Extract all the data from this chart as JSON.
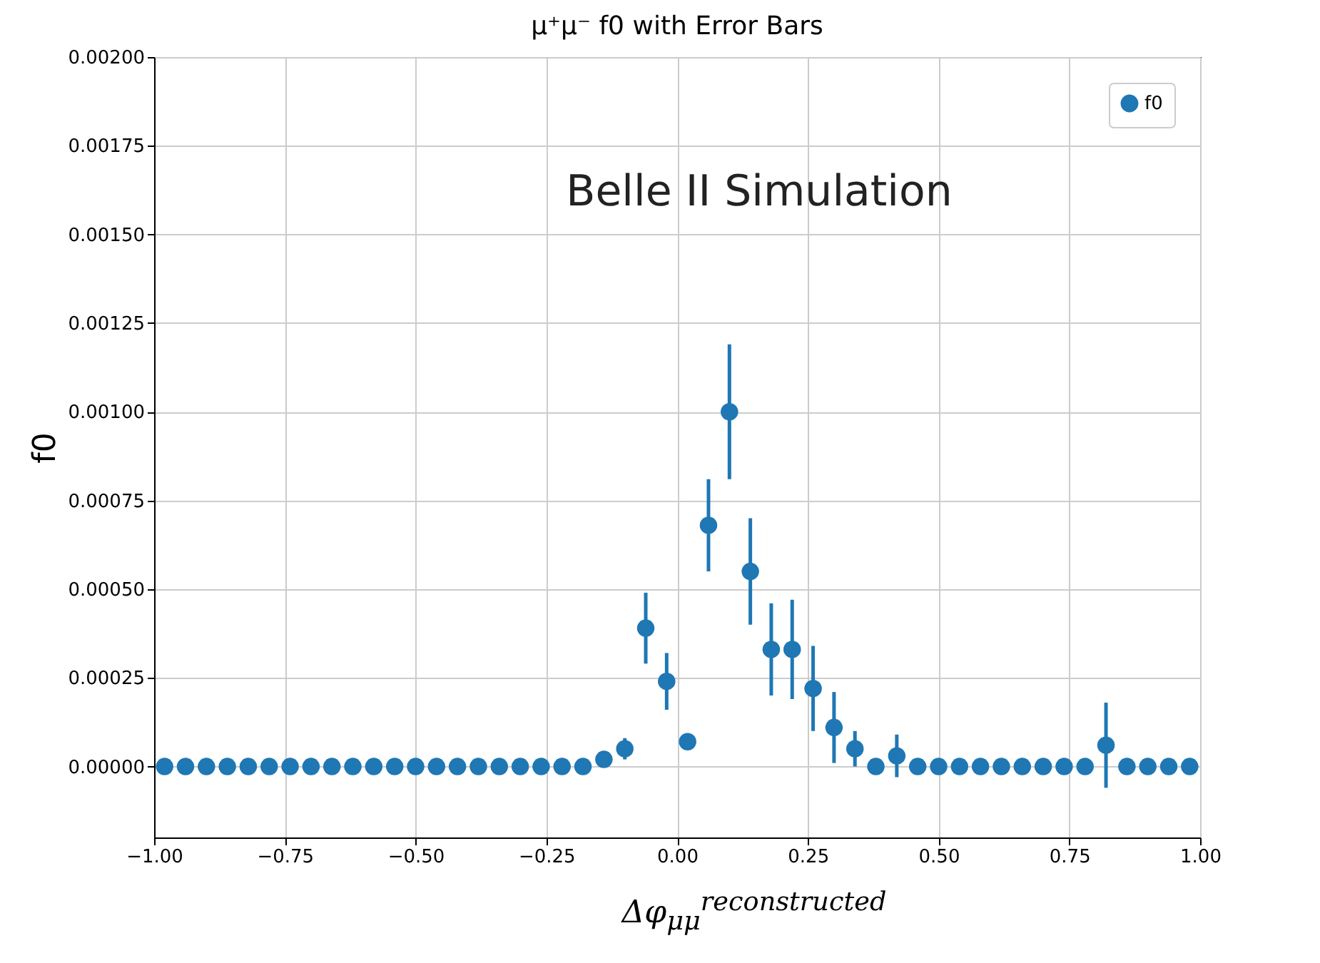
{
  "chart_data": {
    "type": "scatter",
    "title": "μ⁺μ⁻ f0 with Error Bars",
    "xlabel": "Δφ$_{μμ}$$^{reconstructed}$",
    "ylabel": "f0",
    "x": [
      -0.98,
      -0.94,
      -0.9,
      -0.86,
      -0.82,
      -0.78,
      -0.74,
      -0.7,
      -0.66,
      -0.62,
      -0.58,
      -0.54,
      -0.5,
      -0.46,
      -0.42,
      -0.38,
      -0.34,
      -0.3,
      -0.26,
      -0.22,
      -0.18,
      -0.14,
      -0.1,
      -0.06,
      -0.02,
      0.02,
      0.06,
      0.1,
      0.14,
      0.18,
      0.22,
      0.26,
      0.3,
      0.34,
      0.38,
      0.42,
      0.46,
      0.5,
      0.54,
      0.58,
      0.62,
      0.66,
      0.7,
      0.74,
      0.78,
      0.82,
      0.86,
      0.9,
      0.94,
      0.98
    ],
    "series": [
      {
        "name": "f0",
        "color": "#1f77b4",
        "values": [
          0,
          0,
          0,
          0,
          0,
          0,
          0,
          0,
          0,
          0,
          0,
          0,
          0,
          0,
          0,
          0,
          0,
          0,
          0,
          0,
          0,
          2e-05,
          5e-05,
          0.00039,
          0.00024,
          7e-05,
          0.00068,
          0.001,
          0.00055,
          0.00033,
          0.00033,
          0.00022,
          0.00011,
          5e-05,
          0,
          3e-05,
          0,
          0,
          0,
          0,
          0,
          0,
          0,
          0,
          0,
          6e-05,
          0,
          0,
          0,
          0
        ],
        "errors": [
          null,
          null,
          null,
          null,
          null,
          null,
          null,
          null,
          null,
          null,
          null,
          null,
          null,
          null,
          null,
          null,
          null,
          null,
          null,
          null,
          null,
          null,
          3e-05,
          0.0001,
          8e-05,
          2e-05,
          0.00013,
          0.00019,
          0.00015,
          0.00013,
          0.00014,
          0.00012,
          0.0001,
          5e-05,
          null,
          6e-05,
          null,
          null,
          null,
          null,
          null,
          null,
          null,
          null,
          null,
          0.00012,
          null,
          null,
          null,
          null
        ]
      }
    ],
    "xlim": [
      -1,
      1
    ],
    "xticks": [
      {
        "value": -1,
        "label": "−1.00"
      },
      {
        "value": -0.75,
        "label": "−0.75"
      },
      {
        "value": -0.5,
        "label": "−0.50"
      },
      {
        "value": -0.25,
        "label": "−0.25"
      },
      {
        "value": 0,
        "label": "0.00"
      },
      {
        "value": 0.25,
        "label": "0.25"
      },
      {
        "value": 0.5,
        "label": "0.50"
      },
      {
        "value": 0.75,
        "label": "0.75"
      },
      {
        "value": 1,
        "label": "1.00"
      }
    ],
    "ylim": [
      -0.0002,
      0.002
    ],
    "yticks": [
      {
        "value": 0,
        "label": "0.00000"
      },
      {
        "value": 0.00025,
        "label": "0.00025"
      },
      {
        "value": 0.0005,
        "label": "0.00050"
      },
      {
        "value": 0.00075,
        "label": "0.00075"
      },
      {
        "value": 0.001,
        "label": "0.00100"
      },
      {
        "value": 0.00125,
        "label": "0.00125"
      },
      {
        "value": 0.0015,
        "label": "0.00150"
      },
      {
        "value": 0.00175,
        "label": "0.00175"
      },
      {
        "value": 0.002,
        "label": "0.00200"
      }
    ],
    "annotations": [
      "Belle II Simulation"
    ],
    "grid": true,
    "legend": "top right",
    "marker": "circle"
  }
}
